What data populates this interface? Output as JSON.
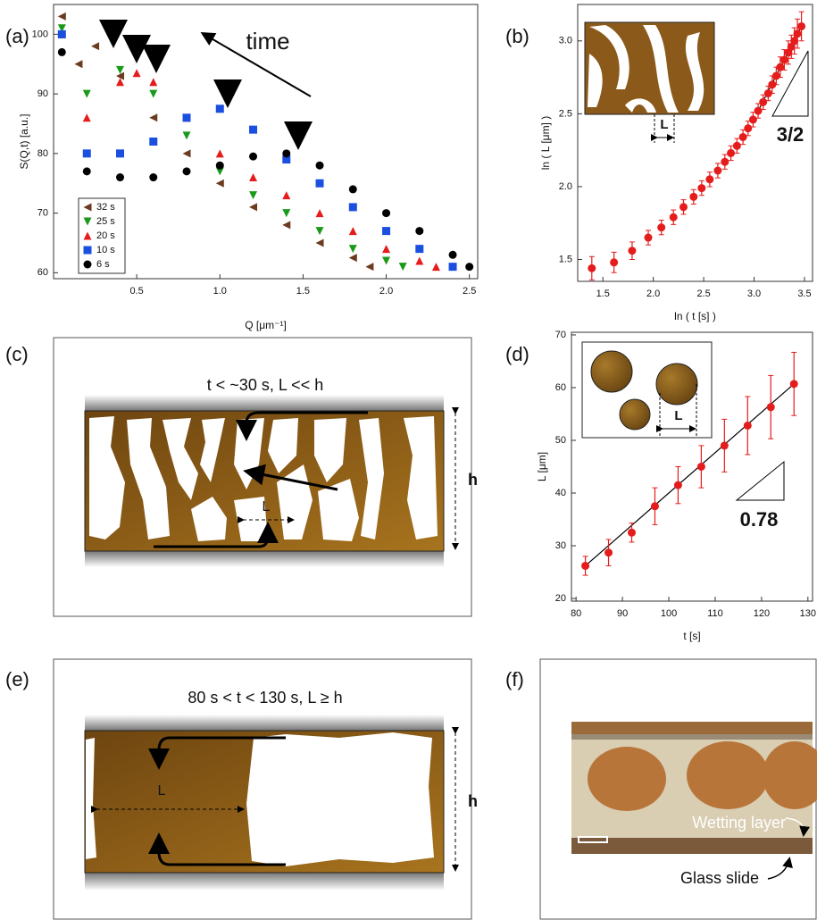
{
  "chart_data": [
    {
      "panel": "(a)",
      "type": "scatter",
      "x_label": "Q [μm⁻¹]",
      "y_label": "S(Q,t) [a.u.]",
      "annotation": "time",
      "legend": "lower left",
      "xlim": [
        0,
        2.55
      ],
      "ylim": [
        59,
        105
      ],
      "xticks": [
        0.5,
        {
          "value": 1,
          "label": "1.0"
        },
        1.5,
        {
          "value": 2,
          "label": "2.0"
        },
        2.5
      ],
      "yticks": [
        60,
        70,
        80,
        90,
        100
      ],
      "series": [
        {
          "name": "32 s",
          "color": "#6b3a1f",
          "marker": "tri-left",
          "x": [
            0.05,
            0.15,
            0.25,
            0.4,
            0.6,
            0.8,
            1.0,
            1.2,
            1.4,
            1.6,
            1.8,
            1.9
          ],
          "values": [
            103,
            95,
            98,
            93,
            86,
            80,
            75,
            71,
            68,
            65,
            62.5,
            61
          ]
        },
        {
          "name": "25 s",
          "color": "#1a9a1a",
          "marker": "tri-down",
          "x": [
            0.05,
            0.2,
            0.4,
            0.6,
            0.8,
            1.0,
            1.2,
            1.4,
            1.6,
            1.8,
            2.0,
            2.1
          ],
          "values": [
            101,
            90,
            94,
            90,
            83,
            77,
            73,
            70,
            67,
            64,
            62,
            61
          ]
        },
        {
          "name": "20 s",
          "color": "#e51c1c",
          "marker": "tri-up",
          "x": [
            0.05,
            0.2,
            0.4,
            0.5,
            0.6,
            0.8,
            1.0,
            1.2,
            1.4,
            1.6,
            1.8,
            2.0,
            2.2,
            2.3
          ],
          "values": [
            100,
            86,
            92,
            93.5,
            92,
            86,
            80,
            76,
            73,
            70,
            67,
            64,
            62,
            61
          ]
        },
        {
          "name": "10 s",
          "color": "#1a4fe0",
          "marker": "square",
          "x": [
            0.05,
            0.2,
            0.4,
            0.6,
            0.8,
            1.0,
            1.2,
            1.4,
            1.6,
            1.8,
            2.0,
            2.2,
            2.4
          ],
          "values": [
            100,
            80,
            80,
            82,
            86,
            87.5,
            84,
            79,
            75,
            71,
            67,
            64,
            61
          ]
        },
        {
          "name": "6 s",
          "color": "#000000",
          "marker": "circle",
          "x": [
            0.05,
            0.2,
            0.4,
            0.6,
            0.8,
            1.0,
            1.2,
            1.4,
            1.6,
            1.8,
            2.0,
            2.2,
            2.4,
            2.5
          ],
          "values": [
            97,
            77,
            76,
            76,
            77,
            78,
            79.5,
            80,
            78,
            74,
            70,
            67,
            63,
            61
          ]
        }
      ]
    },
    {
      "panel": "(b)",
      "type": "scatter",
      "x_label": "ln ( t [s] )",
      "y_label": "ln ( L [μm] )",
      "annotation": "3/2",
      "inset_label": "L",
      "xlim": [
        1.25,
        3.58
      ],
      "ylim": [
        1.35,
        3.25
      ],
      "xticks": [
        1.5,
        {
          "value": 2,
          "label": "2.0"
        },
        2.5,
        {
          "value": 3,
          "label": "3.0"
        },
        3.5
      ],
      "yticks": [
        1.5,
        {
          "value": 2,
          "label": "2.0"
        },
        2.5,
        {
          "value": 3,
          "label": "3.0"
        }
      ],
      "series": [
        {
          "color": "#e51c1c",
          "marker": "circle",
          "x": [
            1.39,
            1.61,
            1.79,
            1.95,
            2.08,
            2.2,
            2.3,
            2.4,
            2.48,
            2.56,
            2.64,
            2.71,
            2.77,
            2.83,
            2.89,
            2.94,
            2.99,
            3.04,
            3.09,
            3.14,
            3.18,
            3.22,
            3.26,
            3.3,
            3.34,
            3.37,
            3.4,
            3.43,
            3.47
          ],
          "values": [
            1.44,
            1.48,
            1.56,
            1.65,
            1.72,
            1.79,
            1.86,
            1.93,
            1.99,
            2.05,
            2.11,
            2.17,
            2.23,
            2.28,
            2.34,
            2.4,
            2.46,
            2.52,
            2.58,
            2.64,
            2.7,
            2.76,
            2.82,
            2.87,
            2.92,
            2.96,
            3.0,
            3.05,
            3.1
          ],
          "errors": [
            0.08,
            0.07,
            0.06,
            0.05,
            0.05,
            0.05,
            0.05,
            0.05,
            0.05,
            0.05,
            0.05,
            0.05,
            0.05,
            0.05,
            0.05,
            0.05,
            0.05,
            0.05,
            0.05,
            0.05,
            0.06,
            0.06,
            0.07,
            0.07,
            0.08,
            0.08,
            0.09,
            0.1,
            0.1
          ]
        }
      ]
    },
    {
      "panel": "(d)",
      "type": "scatter",
      "x_label": "t [s]",
      "y_label": "L [μm]",
      "annotation": "0.78",
      "inset_label": "L",
      "xlim": [
        79,
        131
      ],
      "ylim": [
        19.5,
        70.5
      ],
      "xticks": [
        80,
        90,
        100,
        110,
        120,
        130
      ],
      "yticks": [
        20,
        30,
        40,
        50,
        60,
        70
      ],
      "series": [
        {
          "color": "#e51c1c",
          "marker": "circle",
          "x": [
            82,
            87,
            92,
            97,
            102,
            107,
            112,
            117,
            122,
            127
          ],
          "values": [
            26.2,
            28.7,
            32.5,
            37.5,
            41.5,
            45,
            49,
            52.8,
            56.3,
            60.7
          ],
          "errors": [
            1.8,
            2.5,
            1.8,
            3.5,
            3.5,
            4,
            5,
            5.5,
            6,
            6
          ]
        }
      ]
    }
  ],
  "diagrams": [
    {
      "panel": "(c)",
      "title": "t < ~30 s, L << h",
      "length_label": "L",
      "height_label": "h"
    },
    {
      "panel": "(e)",
      "title": "80 s < t < 130 s, L ≥ h",
      "length_label": "L",
      "height_label": "h"
    },
    {
      "panel": "(f)",
      "labels": [
        "Wetting layer",
        "Glass slide"
      ]
    }
  ]
}
